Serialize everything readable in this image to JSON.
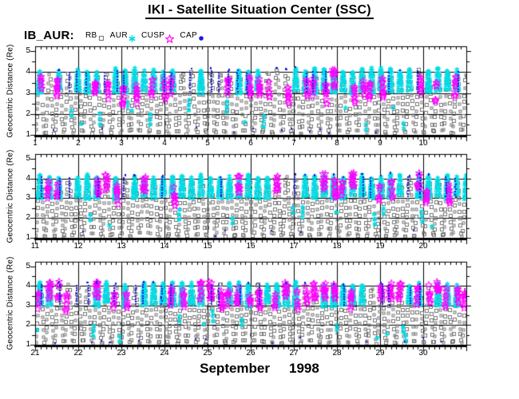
{
  "title": {
    "text": "IKI - Satellite Situation Center (SSC)"
  },
  "legend": {
    "label": "IB_AUR:",
    "items": [
      {
        "name": "RB",
        "marker": "open-square",
        "color": "#808080"
      },
      {
        "name": "AUR",
        "marker": "asterisk",
        "color": "#00dde6"
      },
      {
        "name": "CUSP",
        "marker": "open-star",
        "color": "#ff00ff"
      },
      {
        "name": "CAP",
        "marker": "filled-circle",
        "color": "#1a1ae6"
      }
    ]
  },
  "footer": {
    "month": "September",
    "year": "1998"
  },
  "colors": {
    "background": "#ffffff",
    "frame": "#000000",
    "grid": "#000000"
  },
  "chart_data": {
    "type": "scatter",
    "title": "IKI - Satellite Situation Center (SSC)",
    "ylabel": "Geocentric Distance (Re)",
    "xlabel": "September 1998",
    "ylim": [
      1,
      5.2
    ],
    "y_tick_labels": [
      "5",
      "4",
      "3",
      "2",
      "1"
    ],
    "y_minor_ticks": [
      4.5,
      3.5,
      2.5,
      1.5
    ],
    "grid_horizontal_at": [
      4,
      3,
      2
    ],
    "x_minor_ticks_per_day": 8,
    "panels": [
      {
        "days": "September 1-10",
        "x_tick_labels": [
          "1",
          "2",
          "3",
          "4",
          "5",
          "6",
          "7",
          "8",
          "9",
          "10"
        ]
      },
      {
        "days": "September 11-20",
        "x_tick_labels": [
          "11",
          "12",
          "13",
          "14",
          "15",
          "16",
          "17",
          "18",
          "19",
          "20"
        ]
      },
      {
        "days": "September 21-30",
        "x_tick_labels": [
          "21",
          "22",
          "23",
          "24",
          "25",
          "26",
          "27",
          "28",
          "29",
          "30"
        ]
      }
    ],
    "series": [
      {
        "name": "RB",
        "marker": "open-square",
        "color": "#757575",
        "size": 4
      },
      {
        "name": "AUR",
        "marker": "asterisk",
        "color": "#00dde6",
        "size": 6
      },
      {
        "name": "CUSP",
        "marker": "open-star",
        "color": "#ff00ff",
        "size": 9
      },
      {
        "name": "CAP",
        "marker": "dot",
        "color": "#1a1ae6",
        "size": 2
      }
    ],
    "pattern": {
      "seed": 19980901,
      "orbits_per_day": 4.55,
      "r_perigee": 1.03,
      "r_apogee_min": 4.0,
      "r_apogee_max": 4.22,
      "rb": {
        "r_step": 0.27,
        "r_top_with_aur": 3.8
      },
      "aur": {
        "cap_min_r": 2.95,
        "cap_prob": 0.78,
        "low_band_prob": 0.3
      },
      "cusp": {
        "cluster_prob_by_panel": [
          0.45,
          0.5,
          0.55
        ],
        "top_cluster_prob_by_panel": [
          0.12,
          0.35,
          0.5
        ],
        "r_center_base": 2.9,
        "r_center_panel_shift": 0.12,
        "r_spread": 1.0
      },
      "cap": {
        "column_prob": 0.4,
        "column_r_min": 3.02,
        "column_r_max": 4.1,
        "apex_prob": 0.3,
        "bottom_prob": 0.18
      }
    }
  }
}
